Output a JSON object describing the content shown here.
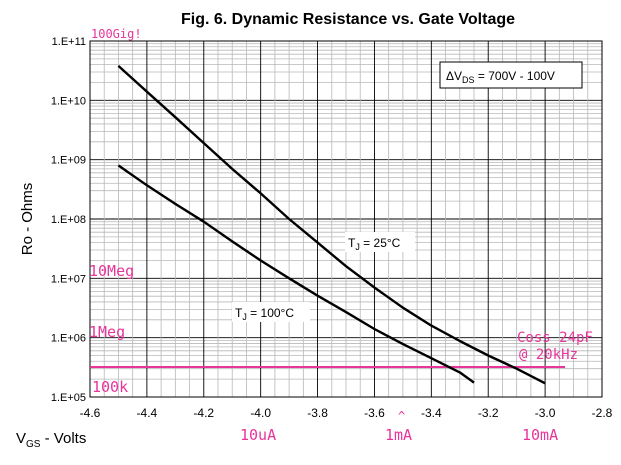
{
  "chart_data": {
    "type": "line",
    "title": "Fig. 6. Dynamic Resistance vs. Gate Voltage",
    "xlabel_main": "V",
    "xlabel_sub": "GS",
    "xlabel_rest": " - Volts",
    "ylabel": "Ro - Ohms",
    "xlim": [
      -4.6,
      -2.8
    ],
    "ylim": [
      100000,
      100000000000
    ],
    "yscale": "log",
    "grid": true,
    "x_ticks": [
      -4.6,
      -4.4,
      -4.2,
      -4.0,
      -3.8,
      -3.6,
      -3.4,
      -3.2,
      -3.0,
      -2.8
    ],
    "x_tick_labels": [
      "-4.6",
      "-4.4",
      "-4.2",
      "-4.0",
      "-3.8",
      "-3.6",
      "-3.4",
      "-3.2",
      "-3.0",
      "-2.8"
    ],
    "y_ticks": [
      100000,
      1000000,
      10000000,
      100000000,
      1000000000,
      10000000000,
      100000000000
    ],
    "y_tick_labels": [
      "1.E+05",
      "1.E+06",
      "1.E+07",
      "1.E+08",
      "1.E+09",
      "1.E+10",
      "1.E+11"
    ],
    "legend_box": {
      "prefix": "Δ",
      "main": "V",
      "sub": "DS",
      "rest": " = 700V - 100V"
    },
    "series": [
      {
        "label_main": "T",
        "label_sub": "J",
        "label_rest": " = 25°C",
        "x": [
          -4.5,
          -4.4,
          -4.3,
          -4.2,
          -4.1,
          -4.0,
          -3.9,
          -3.8,
          -3.7,
          -3.6,
          -3.5,
          -3.4,
          -3.3,
          -3.2,
          -3.1,
          -3.0
        ],
        "y": [
          38000000000,
          14000000000,
          5200000000,
          1900000000,
          700000000,
          270000000,
          100000000,
          40000000,
          16000000,
          7000000,
          3200000,
          1600000,
          880000,
          500000,
          300000,
          170000
        ]
      },
      {
        "label_main": "T",
        "label_sub": "J",
        "label_rest": " = 100°C",
        "x": [
          -4.5,
          -4.4,
          -4.3,
          -4.2,
          -4.1,
          -4.0,
          -3.9,
          -3.8,
          -3.7,
          -3.6,
          -3.5,
          -3.4,
          -3.3,
          -3.25
        ],
        "y": [
          800000000,
          370000000,
          180000000,
          90000000,
          42000000,
          20000000,
          10000000,
          5100000,
          2700000,
          1400000,
          780000,
          450000,
          260000,
          175000
        ]
      }
    ],
    "annotation_line": {
      "y": 320000,
      "x_start": -4.6,
      "x_end": -2.93,
      "color": "#e8359a"
    },
    "annotations": {
      "color": "#e8359a",
      "giga": "100Gig!",
      "ten_meg": "10Meg",
      "one_meg": "1Meg",
      "hundred_k": "100k",
      "coss_1": "Coss 24pF",
      "coss_2": "@ 20kHz",
      "current_10ua": "10uA",
      "current_1ma": "1mA",
      "current_10ma": "10mA",
      "caret": "^"
    }
  }
}
